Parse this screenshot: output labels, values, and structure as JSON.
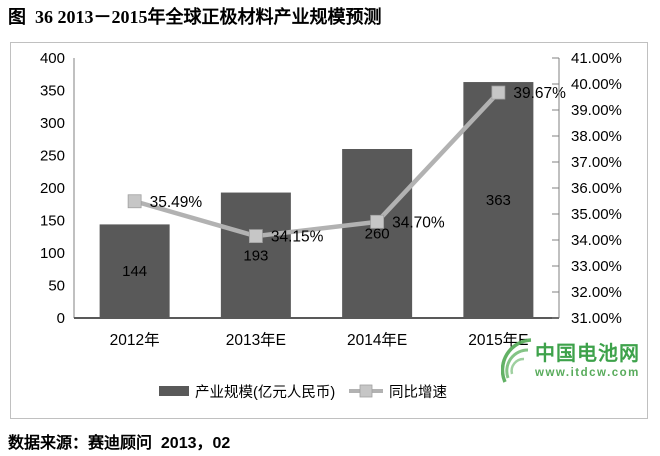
{
  "figure": {
    "title": "图  36 2013－2015年全球正极材料产业规模预测",
    "source": "数据来源：赛迪顾问  2013，02"
  },
  "watermark": {
    "site_name": "中国电池网",
    "site_url": "www.itdcw.com",
    "color": "#2e9b3c",
    "url_color": "#4aa44e"
  },
  "chart_data": {
    "type": "bar",
    "combo": "bar+line",
    "title": "",
    "categories": [
      "2012年",
      "2013年E",
      "2014年E",
      "2015年E"
    ],
    "series": [
      {
        "name": "产业规模(亿元人民币)",
        "type": "bar",
        "axis": "left",
        "values": [
          144,
          193,
          260,
          363
        ],
        "value_labels": [
          "144",
          "193",
          "260",
          "363"
        ],
        "color": "#595959"
      },
      {
        "name": "同比增速",
        "type": "line",
        "axis": "right",
        "values": [
          35.49,
          34.15,
          34.7,
          39.67
        ],
        "point_labels": [
          "35.49%",
          "34.15%",
          "34.70%",
          "39.67%"
        ],
        "line_color": "#b2b2b2",
        "marker_color": "#c6c6c6",
        "marker_edge_color": "#a0a0a0"
      }
    ],
    "left_axis": {
      "min": 0,
      "max": 400,
      "step": 50,
      "tick_labels": [
        "400",
        "350",
        "300",
        "250",
        "200",
        "150",
        "100",
        "50",
        "0"
      ]
    },
    "right_axis": {
      "min": 31,
      "max": 41,
      "step": 1,
      "tick_labels": [
        "41.00%",
        "40.00%",
        "39.00%",
        "38.00%",
        "37.00%",
        "36.00%",
        "35.00%",
        "34.00%",
        "33.00%",
        "32.00%",
        "31.00%"
      ]
    },
    "grid": false,
    "legend_position": "bottom",
    "colors": {
      "axis_line": "#808080",
      "baseline": "#595959",
      "box_border": "#c0c0c0",
      "label_text": "#000000"
    }
  }
}
